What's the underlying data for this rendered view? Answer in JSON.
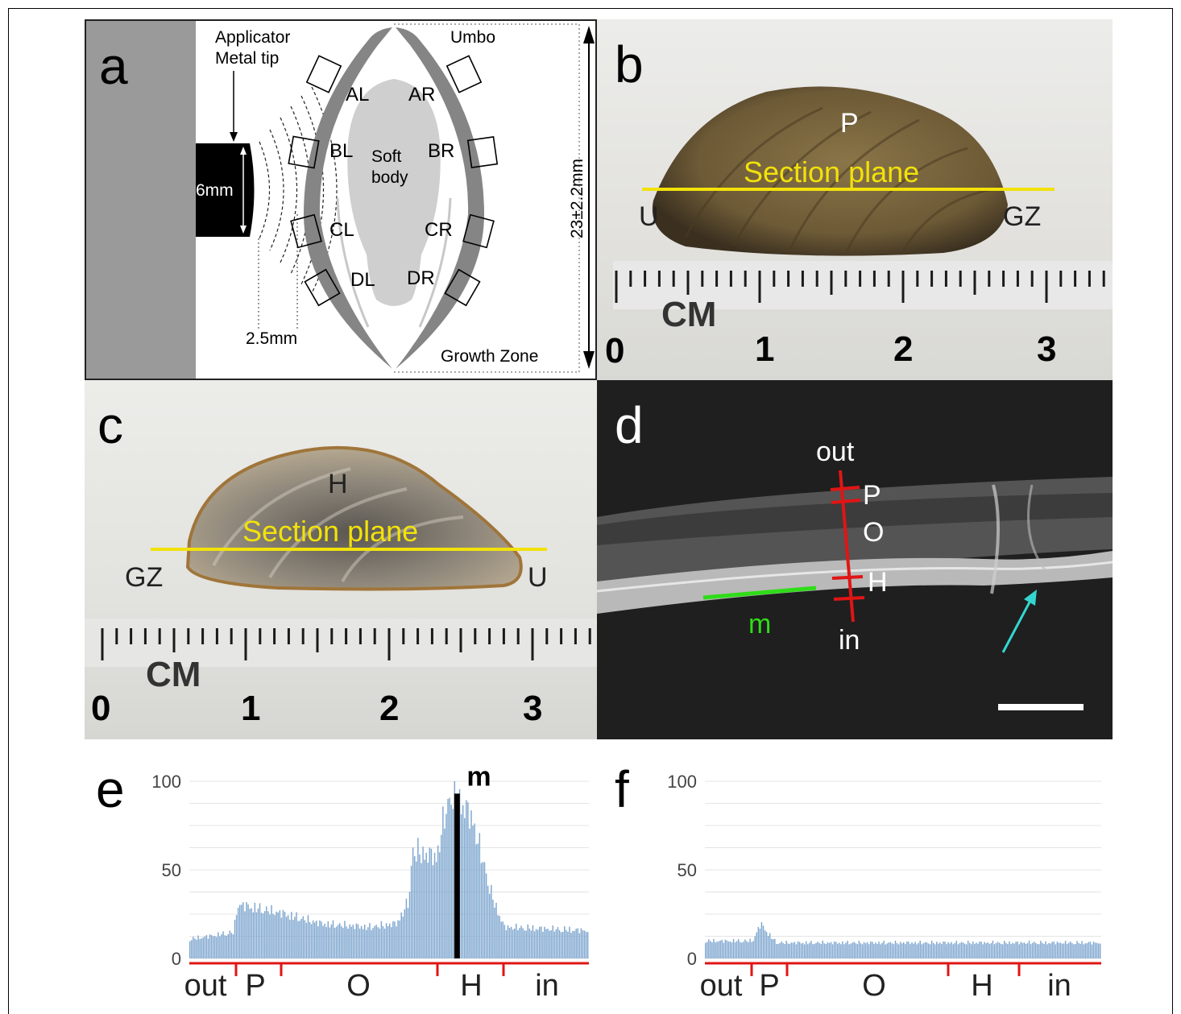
{
  "panel_labels": {
    "a": "a",
    "b": "b",
    "c": "c",
    "d": "d",
    "e": "e",
    "f": "f"
  },
  "panel_a": {
    "applicator": "Applicator",
    "metal_tip": "Metal tip",
    "umbo": "Umbo",
    "soft": "Soft",
    "body": "body",
    "tip_width": "6mm",
    "distance": "2.5mm",
    "growth_zone": "Growth Zone",
    "length": "23±2.2mm",
    "sites": [
      "AL",
      "AR",
      "BL",
      "BR",
      "CL",
      "CR",
      "DL",
      "DR"
    ]
  },
  "panel_b": {
    "p": "P",
    "section_plane": "Section plane",
    "u": "U",
    "gz": "GZ",
    "cm": "CM",
    "ruler": [
      "0",
      "1",
      "2",
      "3"
    ]
  },
  "panel_c": {
    "h": "H",
    "section_plane": "Section plane",
    "gz": "GZ",
    "u": "U",
    "cm": "CM",
    "ruler": [
      "0",
      "1",
      "2",
      "3"
    ]
  },
  "panel_d": {
    "out": "out",
    "p": "P",
    "o": "O",
    "h": "H",
    "in": "in",
    "m": "m"
  },
  "colors": {
    "section_line": "#f2e20a",
    "thickness_line": "#e01515",
    "marker_line": "#2fdc18",
    "arrow": "#34d6d0",
    "bars": "#7ea6cf"
  },
  "chart_data": [
    {
      "type": "bar",
      "panel": "e",
      "ylim": [
        0,
        100
      ],
      "yticks": [
        "0",
        "50",
        "100"
      ],
      "marker_label": "m",
      "layer_labels": [
        "out",
        "P",
        "O",
        "H",
        "in"
      ],
      "profile_keypoints": [
        {
          "x": 0,
          "y": 11
        },
        {
          "x": 11,
          "y": 15
        },
        {
          "x": 12,
          "y": 31
        },
        {
          "x": 23,
          "y": 26
        },
        {
          "x": 33,
          "y": 20
        },
        {
          "x": 45,
          "y": 18
        },
        {
          "x": 52,
          "y": 20
        },
        {
          "x": 55,
          "y": 33
        },
        {
          "x": 56,
          "y": 62
        },
        {
          "x": 62,
          "y": 58
        },
        {
          "x": 64,
          "y": 82
        },
        {
          "x": 66,
          "y": 96
        },
        {
          "x": 71,
          "y": 80
        },
        {
          "x": 76,
          "y": 35
        },
        {
          "x": 79,
          "y": 18
        },
        {
          "x": 100,
          "y": 16
        }
      ],
      "marker_position": 67,
      "marker_value": 93
    },
    {
      "type": "bar",
      "panel": "f",
      "ylim": [
        0,
        100
      ],
      "yticks": [
        "0",
        "50",
        "100"
      ],
      "layer_labels": [
        "out",
        "P",
        "O",
        "H",
        "in"
      ],
      "profile_keypoints": [
        {
          "x": 0,
          "y": 10
        },
        {
          "x": 12,
          "y": 10
        },
        {
          "x": 14,
          "y": 20
        },
        {
          "x": 16,
          "y": 14
        },
        {
          "x": 18,
          "y": 9
        },
        {
          "x": 100,
          "y": 9
        }
      ]
    }
  ]
}
